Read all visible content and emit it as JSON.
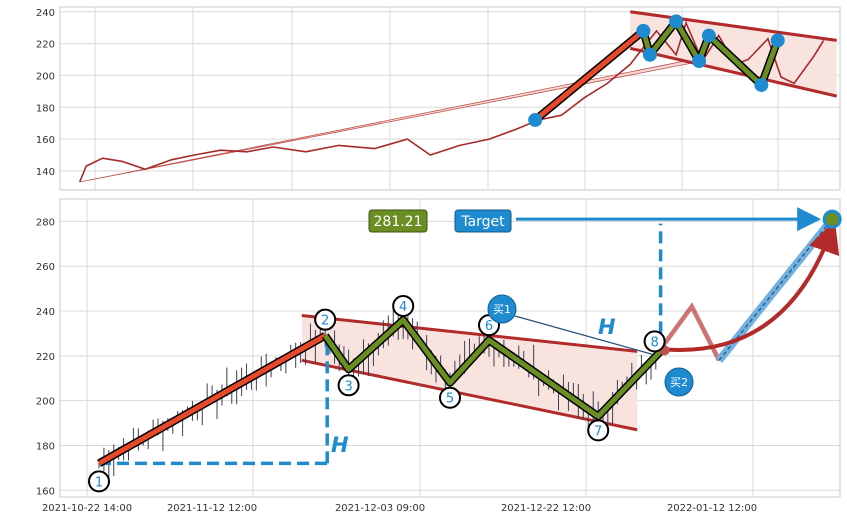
{
  "chart_data": [
    {
      "type": "line",
      "panel": "top",
      "yticks": [
        140,
        160,
        180,
        200,
        220,
        240
      ],
      "ylim": [
        128,
        243
      ],
      "xlim": [
        "2021-06-01",
        "2022-01-25"
      ],
      "grid": true,
      "price_line": {
        "color": "#a52a2a",
        "x": [
          "2021-06-07",
          "2021-06-09",
          "2021-06-14",
          "2021-06-20",
          "2021-06-27",
          "2021-07-05",
          "2021-07-12",
          "2021-07-20",
          "2021-07-28",
          "2021-08-05",
          "2021-08-15",
          "2021-08-25",
          "2021-09-05",
          "2021-09-15",
          "2021-09-22",
          "2021-10-01",
          "2021-10-10",
          "2021-10-18",
          "2021-10-25",
          "2021-11-01",
          "2021-11-08",
          "2021-11-15",
          "2021-11-22",
          "2021-11-25",
          "2021-11-30",
          "2021-12-06",
          "2021-12-09",
          "2021-12-14",
          "2021-12-19",
          "2021-12-24",
          "2021-12-28",
          "2022-01-03",
          "2022-01-07",
          "2022-01-11",
          "2022-01-17",
          "2022-01-20"
        ],
        "y": [
          133,
          143,
          148,
          146,
          141,
          147,
          150,
          153,
          152,
          155,
          152,
          156,
          154,
          160,
          150,
          156,
          160,
          166,
          172,
          175,
          186,
          195,
          207,
          215,
          228,
          213,
          233,
          209,
          225,
          207,
          210,
          223,
          199,
          195,
          212,
          222
        ]
      },
      "pivot_points": [
        {
          "x": "2021-10-24",
          "y": 172
        },
        {
          "x": "2021-11-26",
          "y": 228
        },
        {
          "x": "2021-11-28",
          "y": 213
        },
        {
          "x": "2021-12-06",
          "y": 234
        },
        {
          "x": "2021-12-13",
          "y": 209
        },
        {
          "x": "2021-12-16",
          "y": 225
        },
        {
          "x": "2022-01-01",
          "y": 194
        },
        {
          "x": "2022-01-06",
          "y": 222
        }
      ]
    },
    {
      "type": "line",
      "panel": "bottom",
      "xticks": [
        "2021-10-22 14:00",
        "2021-11-12 12:00",
        "2021-12-03 09:00",
        "2021-12-22 12:00",
        "2022-01-12 12:00"
      ],
      "yticks": [
        160,
        180,
        200,
        220,
        240,
        260,
        280
      ],
      "ylim": [
        157,
        290
      ],
      "grid": true,
      "pattern_points": [
        {
          "label": "1",
          "x": 0.05,
          "y": 172
        },
        {
          "label": "2",
          "x": 0.34,
          "y": 229
        },
        {
          "label": "3",
          "x": 0.37,
          "y": 214
        },
        {
          "label": "4",
          "x": 0.44,
          "y": 236
        },
        {
          "label": "5",
          "x": 0.5,
          "y": 208
        },
        {
          "label": "6",
          "x": 0.55,
          "y": 227
        },
        {
          "label": "7",
          "x": 0.69,
          "y": 193
        },
        {
          "label": "8",
          "x": 0.77,
          "y": 222
        }
      ],
      "projection": [
        {
          "x": 0.77,
          "y": 223
        },
        {
          "x": 0.81,
          "y": 242
        },
        {
          "x": 0.845,
          "y": 218
        },
        {
          "x": 0.99,
          "y": 281
        }
      ],
      "price_label": "281.21",
      "target_label": "Target",
      "buy1_label": "买1",
      "buy2_label": "买2",
      "height_label": "H",
      "colors": {
        "pattern": "#6b8e23",
        "trend": "#e8492b",
        "channel": "#b22a2a",
        "accent": "#1e8bd1",
        "projection": "#c0504d"
      }
    }
  ]
}
